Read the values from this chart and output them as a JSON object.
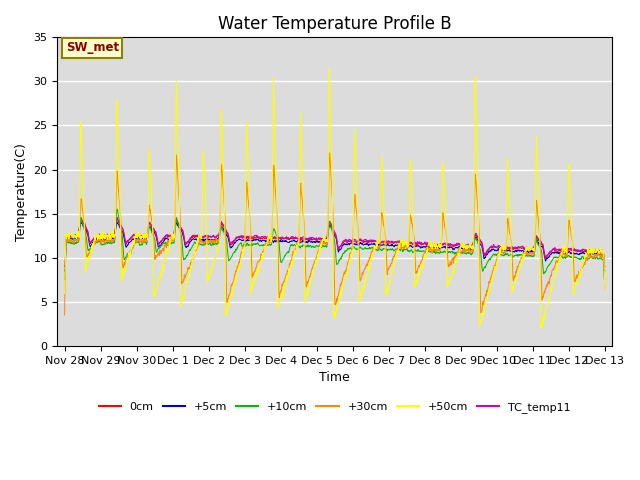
{
  "title": "Water Temperature Profile B",
  "xlabel": "Time",
  "ylabel": "Temperature(C)",
  "xlim": [
    -0.2,
    15.2
  ],
  "ylim": [
    0,
    35
  ],
  "yticks": [
    0,
    5,
    10,
    15,
    20,
    25,
    30,
    35
  ],
  "xtick_labels": [
    "Nov 28",
    "Nov 29",
    "Nov 30",
    "Dec 1",
    "Dec 2",
    "Dec 3",
    "Dec 4",
    "Dec 5",
    "Dec 6",
    "Dec 7",
    "Dec 8",
    "Dec 9",
    "Dec 10",
    "Dec 11",
    "Dec 12",
    "Dec 13"
  ],
  "xtick_positions": [
    0,
    1,
    2,
    3,
    4,
    5,
    6,
    7,
    8,
    9,
    10,
    11,
    12,
    13,
    14,
    15
  ],
  "colors": {
    "0cm": "#ff0000",
    "+5cm": "#0000cc",
    "+10cm": "#00bb00",
    "+30cm": "#ff8800",
    "+50cm": "#ffff00",
    "TC_temp11": "#cc00cc"
  },
  "bg_color": "#dcdcdc",
  "title_fontsize": 12,
  "axis_label_fontsize": 9,
  "tick_fontsize": 8
}
